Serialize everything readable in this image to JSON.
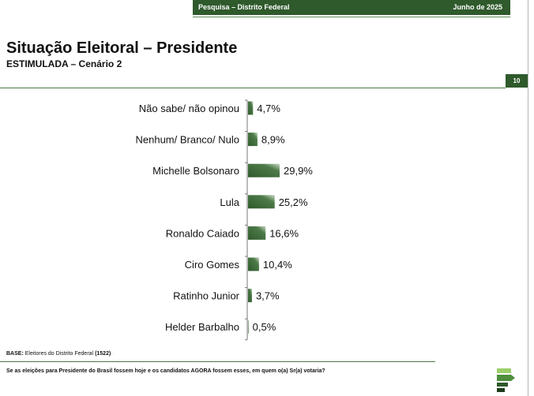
{
  "header": {
    "survey_label": "Pesquisa – Distrito Federal",
    "date": "Junho de 2025",
    "page_number": "10"
  },
  "title": "Situação Eleitoral – Presidente",
  "subtitle": "ESTIMULADA – Cenário 2",
  "footer": {
    "base_label": "BASE:",
    "base_text": "Eleitores do Distrito Federal",
    "base_count": "(1522)",
    "question": "Se as eleições para Presidente do Brasil fossem hoje e os candidatos AGORA fossem esses, em quem o(a) Sr(a) votaria?"
  },
  "colors": {
    "bar_dark": "#2f5a2c",
    "bar_light": "#c8d8c3",
    "accent": "#2f5a2c"
  },
  "chart_data": {
    "type": "bar",
    "orientation": "horizontal",
    "title": "",
    "xlabel": "",
    "ylabel": "",
    "xlim": [
      0,
      30
    ],
    "grid": false,
    "categories": [
      "Não sabe/ não opinou",
      "Nenhum/ Branco/ Nulo",
      "Michelle Bolsonaro",
      "Lula",
      "Ronaldo Caiado",
      "Ciro Gomes",
      "Ratinho Junior",
      "Helder Barbalho"
    ],
    "values": [
      4.7,
      8.9,
      29.9,
      25.2,
      16.6,
      10.4,
      3.7,
      0.5
    ],
    "value_labels": [
      "4,7%",
      "8,9%",
      "29,9%",
      "25,2%",
      "16,6%",
      "10,4%",
      "3,7%",
      "0,5%"
    ]
  }
}
